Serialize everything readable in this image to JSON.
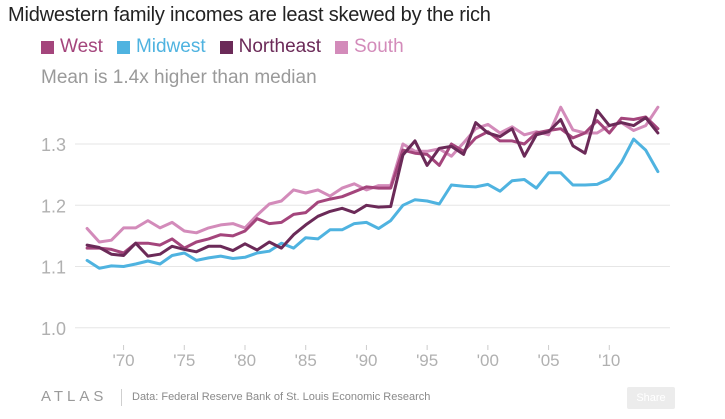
{
  "title": "Midwestern family incomes are least skewed by the rich",
  "subtitle": "Mean is 1.4x higher than median",
  "footer": {
    "brand": "ATLAS",
    "source": "Data: Federal Reserve Bank of St. Louis Economic Research",
    "share_label": "Share"
  },
  "colors": {
    "West": "#a4457c",
    "Midwest": "#4fb3e0",
    "Northeast": "#6b2a58",
    "South": "#d38bba",
    "grid": "#e6e6e6",
    "tick": "#b0b0b0"
  },
  "chart_data": {
    "type": "line",
    "title": "Midwestern family incomes are least skewed by the rich",
    "subtitle": "Mean is 1.4x higher than median",
    "xlabel": "",
    "ylabel": "",
    "x": [
      1967,
      1968,
      1969,
      1970,
      1971,
      1972,
      1973,
      1974,
      1975,
      1976,
      1977,
      1978,
      1979,
      1980,
      1981,
      1982,
      1983,
      1984,
      1985,
      1986,
      1987,
      1988,
      1989,
      1990,
      1991,
      1992,
      1993,
      1994,
      1995,
      1996,
      1997,
      1998,
      1999,
      2000,
      2001,
      2002,
      2003,
      2004,
      2005,
      2006,
      2007,
      2008,
      2009,
      2010,
      2011,
      2012,
      2013,
      2014
    ],
    "xlim": [
      1966,
      2015
    ],
    "ylim": [
      0.98,
      1.38
    ],
    "y_ticks": [
      1.0,
      1.1,
      1.2,
      1.3
    ],
    "y_tick_labels": [
      "1.0",
      "1.1",
      "1.2",
      "1.3"
    ],
    "x_ticks": [
      1970,
      1975,
      1980,
      1985,
      1990,
      1995,
      2000,
      2005,
      2010
    ],
    "x_tick_labels": [
      "'70",
      "'75",
      "'80",
      "'85",
      "'90",
      "'95",
      "'00",
      "'05",
      "'10"
    ],
    "grid": true,
    "legend_position": "top-left",
    "series": [
      {
        "name": "West",
        "values": [
          1.13,
          1.13,
          1.128,
          1.122,
          1.138,
          1.138,
          1.135,
          1.145,
          1.13,
          1.14,
          1.145,
          1.152,
          1.15,
          1.158,
          1.178,
          1.17,
          1.172,
          1.185,
          1.188,
          1.205,
          1.21,
          1.214,
          1.222,
          1.23,
          1.228,
          1.228,
          1.29,
          1.285,
          1.283,
          1.265,
          1.3,
          1.288,
          1.31,
          1.32,
          1.305,
          1.305,
          1.3,
          1.318,
          1.322,
          1.325,
          1.31,
          1.318,
          1.338,
          1.318,
          1.342,
          1.34,
          1.344,
          1.325
        ]
      },
      {
        "name": "Midwest",
        "values": [
          1.11,
          1.097,
          1.101,
          1.1,
          1.104,
          1.109,
          1.104,
          1.118,
          1.122,
          1.11,
          1.114,
          1.117,
          1.113,
          1.115,
          1.122,
          1.125,
          1.138,
          1.13,
          1.147,
          1.145,
          1.16,
          1.16,
          1.17,
          1.172,
          1.162,
          1.175,
          1.2,
          1.209,
          1.207,
          1.202,
          1.233,
          1.231,
          1.23,
          1.234,
          1.223,
          1.24,
          1.242,
          1.228,
          1.253,
          1.253,
          1.233,
          1.233,
          1.234,
          1.243,
          1.27,
          1.308,
          1.29,
          1.255
        ]
      },
      {
        "name": "Northeast",
        "values": [
          1.135,
          1.131,
          1.12,
          1.118,
          1.138,
          1.117,
          1.12,
          1.133,
          1.128,
          1.124,
          1.133,
          1.133,
          1.126,
          1.137,
          1.127,
          1.14,
          1.13,
          1.152,
          1.168,
          1.182,
          1.19,
          1.195,
          1.188,
          1.2,
          1.197,
          1.198,
          1.282,
          1.305,
          1.265,
          1.293,
          1.296,
          1.283,
          1.335,
          1.318,
          1.312,
          1.325,
          1.28,
          1.315,
          1.32,
          1.34,
          1.297,
          1.285,
          1.355,
          1.33,
          1.335,
          1.33,
          1.343,
          1.318
        ]
      },
      {
        "name": "South",
        "values": [
          1.162,
          1.14,
          1.143,
          1.163,
          1.163,
          1.175,
          1.163,
          1.172,
          1.158,
          1.155,
          1.163,
          1.168,
          1.17,
          1.163,
          1.184,
          1.202,
          1.207,
          1.225,
          1.22,
          1.225,
          1.215,
          1.228,
          1.235,
          1.225,
          1.232,
          1.232,
          1.3,
          1.288,
          1.288,
          1.292,
          1.28,
          1.302,
          1.325,
          1.332,
          1.318,
          1.328,
          1.315,
          1.32,
          1.315,
          1.36,
          1.323,
          1.318,
          1.318,
          1.33,
          1.335,
          1.322,
          1.33,
          1.36
        ]
      }
    ]
  }
}
